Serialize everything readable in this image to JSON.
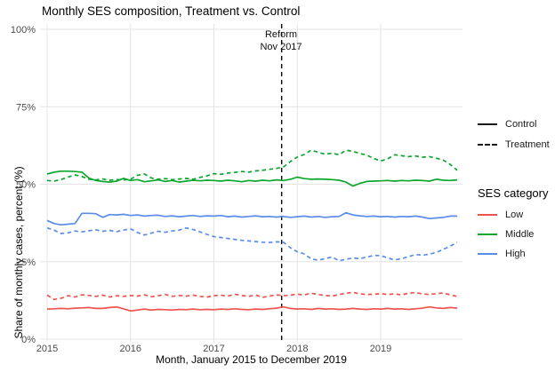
{
  "title": "Monthly SES composition, Treatment vs. Control",
  "annotation": {
    "line1": "Reform",
    "line2": "Nov 2017",
    "month": "2017-11"
  },
  "colors": {
    "low": "#F0524F",
    "middle": "#0CA62F",
    "high": "#5A8CEB",
    "reform_line": "#000000",
    "gridline": "#E4E4E4",
    "axis_text": "#4d4d4d"
  },
  "legend": {
    "linetype_items": [
      {
        "label": "Control",
        "style": "solid"
      },
      {
        "label": "Treatment",
        "style": "dashed"
      }
    ],
    "color_title": "SES category",
    "color_items": [
      {
        "label": "Low",
        "color_key": "low"
      },
      {
        "label": "Middle",
        "color_key": "middle"
      },
      {
        "label": "High",
        "color_key": "high"
      }
    ],
    "position": "right"
  },
  "chart_data": {
    "type": "line",
    "title": "Monthly SES composition, Treatment vs. Control",
    "xlabel": "Month, January 2015 to December 2019",
    "ylabel": "Share of monthly cases, percent (%)",
    "x_start": "2015-01",
    "x_end": "2019-12",
    "n_points": 60,
    "x_tick_labels": [
      "2015",
      "2016",
      "2017",
      "2018",
      "2019"
    ],
    "x_tick_month_index": [
      0,
      12,
      24,
      36,
      48
    ],
    "y_tick_labels": [
      "0%",
      "25%",
      "50%",
      "75%",
      "100%"
    ],
    "y_tick_values": [
      0,
      25,
      50,
      75,
      100
    ],
    "ylim": [
      0,
      100
    ],
    "grid": "major-only",
    "reform_month_index": 34,
    "series": [
      {
        "name": "Middle Control",
        "ses": "Middle",
        "group": "Control",
        "color_key": "middle",
        "dashed": false,
        "values": [
          53.3,
          53.9,
          54.2,
          54.2,
          54.1,
          53.9,
          52.0,
          51.2,
          50.9,
          50.7,
          51.0,
          51.9,
          51.2,
          51.5,
          50.8,
          51.1,
          51.4,
          50.9,
          51.2,
          50.7,
          51.0,
          51.3,
          51.1,
          51.3,
          51.2,
          51.0,
          51.3,
          51.1,
          50.8,
          51.2,
          51.0,
          51.3,
          51.1,
          51.4,
          51.2,
          51.6,
          52.3,
          51.8,
          51.6,
          51.7,
          51.6,
          51.5,
          51.3,
          50.7,
          49.4,
          50.3,
          50.9,
          51.0,
          51.1,
          51.2,
          51.0,
          51.2,
          51.1,
          51.3,
          51.2,
          51.0,
          51.6,
          51.3,
          51.2,
          51.4
        ]
      },
      {
        "name": "Middle Treatment",
        "ses": "Middle",
        "group": "Treatment",
        "color_key": "middle",
        "dashed": true,
        "values": [
          51.2,
          51.0,
          51.5,
          52.3,
          53.0,
          52.5,
          51.6,
          51.4,
          51.7,
          51.3,
          51.5,
          51.4,
          51.6,
          52.9,
          53.3,
          52.0,
          51.6,
          51.8,
          51.5,
          51.7,
          51.9,
          51.6,
          52.2,
          52.7,
          53.4,
          53.2,
          53.6,
          53.8,
          54.1,
          53.9,
          54.3,
          54.5,
          54.8,
          55.1,
          55.6,
          57.3,
          58.8,
          59.6,
          61.0,
          60.3,
          59.7,
          60.0,
          59.5,
          61.0,
          60.6,
          59.9,
          59.4,
          58.3,
          57.5,
          58.2,
          59.5,
          59.2,
          58.9,
          59.1,
          58.7,
          58.9,
          58.4,
          57.8,
          56.4,
          54.5
        ]
      },
      {
        "name": "High Control",
        "ses": "High",
        "group": "Control",
        "color_key": "high",
        "dashed": false,
        "values": [
          38.3,
          37.3,
          36.9,
          37.1,
          37.3,
          40.6,
          40.6,
          40.5,
          39.3,
          40.2,
          40.1,
          40.3,
          39.9,
          40.1,
          39.7,
          39.9,
          40.0,
          39.6,
          39.8,
          39.5,
          39.7,
          39.9,
          39.6,
          39.8,
          39.7,
          39.9,
          39.5,
          39.7,
          39.4,
          39.6,
          39.8,
          39.5,
          39.6,
          39.4,
          39.6,
          39.3,
          39.5,
          39.7,
          39.4,
          39.6,
          39.3,
          39.5,
          39.6,
          40.8,
          40.1,
          39.8,
          39.6,
          39.7,
          39.5,
          39.6,
          39.4,
          39.6,
          39.5,
          39.7,
          39.4,
          38.9,
          39.1,
          39.3,
          39.7,
          39.7
        ]
      },
      {
        "name": "High Treatment",
        "ses": "High",
        "group": "Treatment",
        "color_key": "high",
        "dashed": true,
        "values": [
          35.9,
          35.2,
          34.1,
          34.3,
          34.9,
          34.6,
          35.0,
          35.3,
          34.8,
          35.1,
          34.7,
          35.2,
          35.6,
          34.4,
          33.6,
          34.2,
          34.8,
          34.5,
          34.9,
          35.2,
          35.9,
          35.4,
          34.6,
          33.8,
          33.1,
          32.8,
          32.5,
          32.2,
          31.9,
          31.7,
          31.5,
          31.3,
          31.2,
          31.4,
          31.3,
          29.5,
          28.2,
          27.5,
          25.9,
          25.5,
          26.0,
          26.5,
          25.3,
          25.8,
          26.2,
          26.0,
          26.5,
          27.0,
          27.0,
          26.2,
          25.6,
          26.0,
          26.6,
          27.3,
          27.1,
          27.4,
          28.0,
          29.0,
          30.0,
          31.3
        ]
      },
      {
        "name": "Low Control",
        "ses": "Low",
        "group": "Control",
        "color_key": "low",
        "dashed": false,
        "values": [
          9.7,
          9.8,
          9.9,
          9.8,
          10.0,
          10.1,
          10.2,
          9.9,
          9.9,
          10.2,
          10.4,
          9.8,
          9.1,
          9.4,
          9.7,
          9.4,
          9.6,
          9.5,
          9.4,
          9.6,
          9.5,
          9.7,
          9.5,
          9.6,
          9.5,
          9.7,
          9.6,
          9.8,
          9.6,
          9.5,
          9.7,
          9.6,
          9.8,
          10.0,
          10.4,
          9.9,
          9.7,
          9.8,
          9.6,
          9.9,
          9.7,
          9.8,
          9.6,
          9.7,
          9.9,
          9.7,
          9.6,
          9.8,
          9.7,
          9.9,
          9.7,
          9.8,
          9.6,
          9.8,
          10.0,
          10.4,
          10.1,
          9.9,
          10.2,
          10.0
        ]
      },
      {
        "name": "Low Treatment",
        "ses": "Low",
        "group": "Treatment",
        "color_key": "low",
        "dashed": true,
        "values": [
          14.2,
          12.8,
          13.2,
          14.0,
          13.6,
          14.3,
          14.1,
          13.8,
          14.2,
          13.6,
          14.0,
          13.8,
          14.1,
          13.9,
          14.3,
          13.7,
          14.0,
          14.4,
          13.8,
          14.1,
          13.9,
          14.2,
          13.8,
          13.6,
          14.0,
          14.2,
          13.9,
          14.5,
          14.1,
          13.8,
          14.2,
          13.5,
          13.9,
          14.3,
          14.0,
          14.2,
          14.5,
          14.3,
          14.8,
          14.4,
          14.1,
          13.9,
          14.4,
          14.8,
          15.1,
          14.6,
          14.4,
          14.5,
          14.7,
          14.4,
          14.6,
          14.3,
          14.8,
          15.0,
          14.6,
          14.4,
          14.7,
          14.9,
          14.3,
          13.8
        ]
      }
    ]
  }
}
